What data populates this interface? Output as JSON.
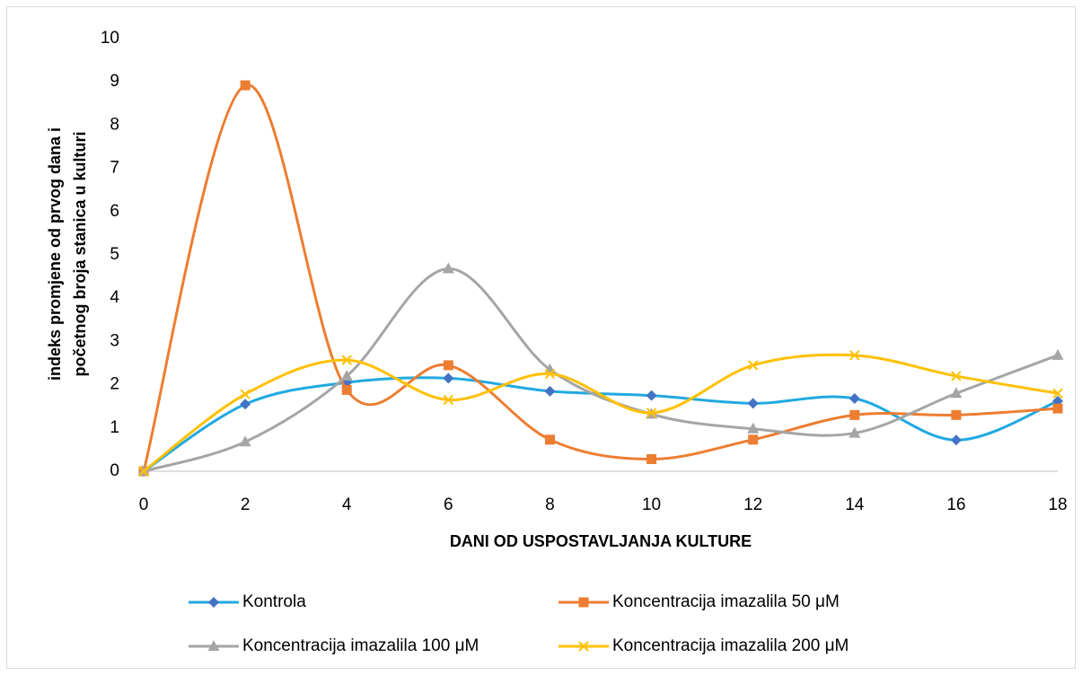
{
  "chart_data": {
    "type": "line",
    "ylabel": [
      "indeks promjene od prvog dana i",
      "početnog broja stanica u kulturi"
    ],
    "xlabel": "DANI OD USPOSTAVLJANJA KULTURE",
    "x": [
      0,
      2,
      4,
      6,
      8,
      10,
      12,
      14,
      16,
      18
    ],
    "xlim": [
      0,
      18
    ],
    "xticks": [
      0,
      2,
      4,
      6,
      8,
      10,
      12,
      14,
      16,
      18
    ],
    "ylim": [
      0,
      10
    ],
    "yticks": [
      0,
      1,
      2,
      3,
      4,
      5,
      6,
      7,
      8,
      9,
      10
    ],
    "smooth": true,
    "grid": false,
    "legend": "bottom",
    "series": [
      {
        "name": "Kontrola",
        "color": "#21a9e1",
        "marker": "diamond",
        "marker_color": "#4472c4",
        "values": [
          0,
          1.55,
          2.05,
          2.15,
          1.85,
          1.75,
          1.57,
          1.68,
          0.72,
          1.62
        ]
      },
      {
        "name": "Koncentracija imazalila 50 μM",
        "color": "#ed7d31",
        "marker": "square",
        "marker_color": "#ed7d31",
        "values": [
          0,
          8.92,
          1.88,
          2.45,
          0.73,
          0.28,
          0.73,
          1.3,
          1.3,
          1.45
        ]
      },
      {
        "name": "Koncentracija imazalila 100 μM",
        "color": "#a5a5a5",
        "marker": "triangle",
        "marker_color": "#a5a5a5",
        "values": [
          0,
          0.68,
          2.2,
          4.68,
          2.35,
          1.32,
          0.98,
          0.88,
          1.8,
          2.68
        ]
      },
      {
        "name": "Koncentracija imazalila 200 μM",
        "color": "#ffc000",
        "marker": "x",
        "marker_color": "#ffc000",
        "values": [
          0,
          1.78,
          2.57,
          1.65,
          2.25,
          1.35,
          2.45,
          2.68,
          2.2,
          1.8
        ]
      }
    ]
  }
}
